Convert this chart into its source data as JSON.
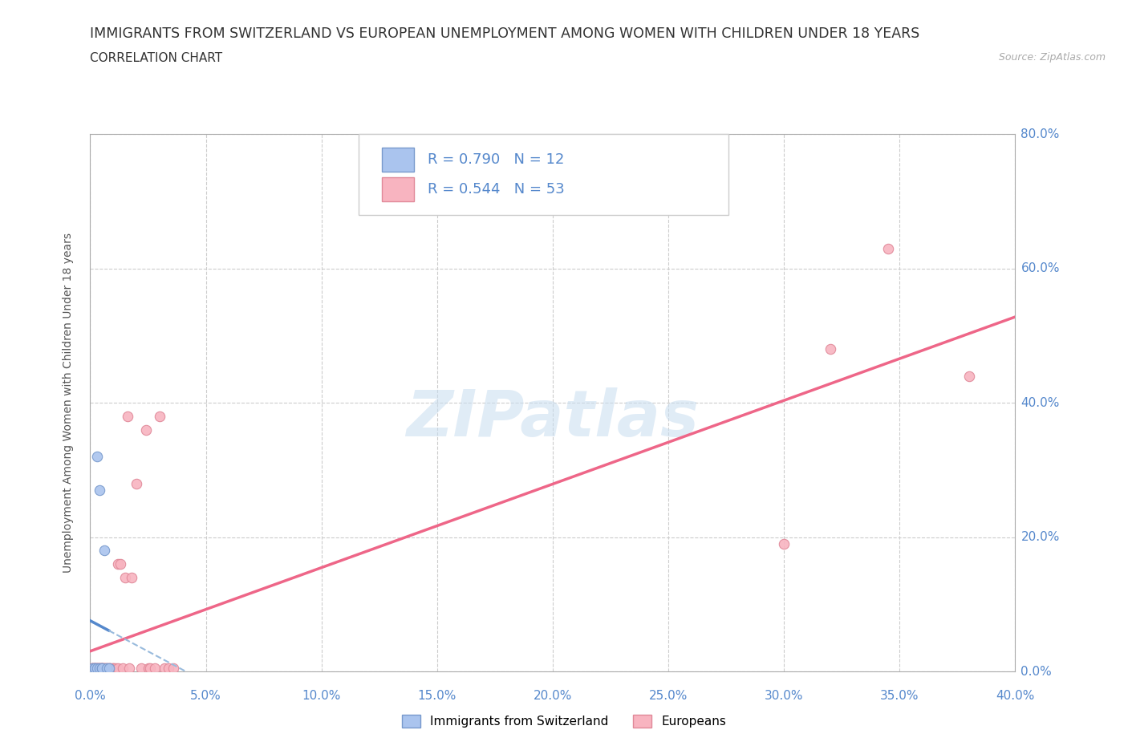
{
  "title": "IMMIGRANTS FROM SWITZERLAND VS EUROPEAN UNEMPLOYMENT AMONG WOMEN WITH CHILDREN UNDER 18 YEARS",
  "subtitle": "CORRELATION CHART",
  "source": "Source: ZipAtlas.com",
  "ylabel": "Unemployment Among Women with Children Under 18 years",
  "xlim": [
    0.0,
    0.4
  ],
  "ylim": [
    0.0,
    0.8
  ],
  "xticks": [
    0.0,
    0.05,
    0.1,
    0.15,
    0.2,
    0.25,
    0.3,
    0.35,
    0.4
  ],
  "yticks": [
    0.0,
    0.2,
    0.4,
    0.6,
    0.8
  ],
  "blue_scatter_x": [
    0.001,
    0.002,
    0.002,
    0.003,
    0.003,
    0.004,
    0.004,
    0.005,
    0.005,
    0.006,
    0.007,
    0.008
  ],
  "blue_scatter_y": [
    0.005,
    0.005,
    0.005,
    0.005,
    0.32,
    0.27,
    0.005,
    0.005,
    0.005,
    0.18,
    0.005,
    0.005
  ],
  "pink_scatter_x": [
    0.001,
    0.001,
    0.001,
    0.001,
    0.002,
    0.002,
    0.002,
    0.002,
    0.003,
    0.003,
    0.003,
    0.003,
    0.004,
    0.004,
    0.004,
    0.004,
    0.005,
    0.005,
    0.005,
    0.005,
    0.006,
    0.006,
    0.006,
    0.007,
    0.007,
    0.008,
    0.008,
    0.009,
    0.01,
    0.01,
    0.011,
    0.012,
    0.012,
    0.013,
    0.014,
    0.015,
    0.016,
    0.017,
    0.018,
    0.02,
    0.022,
    0.024,
    0.025,
    0.026,
    0.028,
    0.03,
    0.032,
    0.034,
    0.036,
    0.3,
    0.32,
    0.345,
    0.38
  ],
  "pink_scatter_y": [
    0.005,
    0.005,
    0.005,
    0.005,
    0.005,
    0.005,
    0.005,
    0.005,
    0.005,
    0.005,
    0.005,
    0.005,
    0.005,
    0.005,
    0.005,
    0.005,
    0.005,
    0.005,
    0.005,
    0.005,
    0.005,
    0.005,
    0.005,
    0.005,
    0.005,
    0.005,
    0.005,
    0.005,
    0.005,
    0.005,
    0.005,
    0.16,
    0.005,
    0.16,
    0.005,
    0.14,
    0.38,
    0.005,
    0.14,
    0.28,
    0.005,
    0.36,
    0.005,
    0.005,
    0.005,
    0.38,
    0.005,
    0.005,
    0.005,
    0.19,
    0.48,
    0.63,
    0.44
  ],
  "blue_color": "#aac4ee",
  "blue_edge_color": "#7799cc",
  "pink_color": "#f8b4c0",
  "pink_edge_color": "#e08898",
  "blue_line_color": "#5588cc",
  "blue_line_dashed_color": "#99bbdd",
  "pink_line_color": "#ee6688",
  "R_blue": 0.79,
  "N_blue": 12,
  "R_pink": 0.544,
  "N_pink": 53,
  "watermark": "ZIPatlas",
  "watermark_color": "#c8ddf0",
  "background_color": "#ffffff",
  "grid_color": "#cccccc",
  "title_color": "#333333",
  "tick_color": "#5588cc",
  "ylabel_color": "#555555",
  "title_fontsize": 12.5,
  "subtitle_fontsize": 11,
  "axis_label_fontsize": 10,
  "tick_fontsize": 11,
  "legend_fontsize": 13,
  "scatter_size": 80
}
